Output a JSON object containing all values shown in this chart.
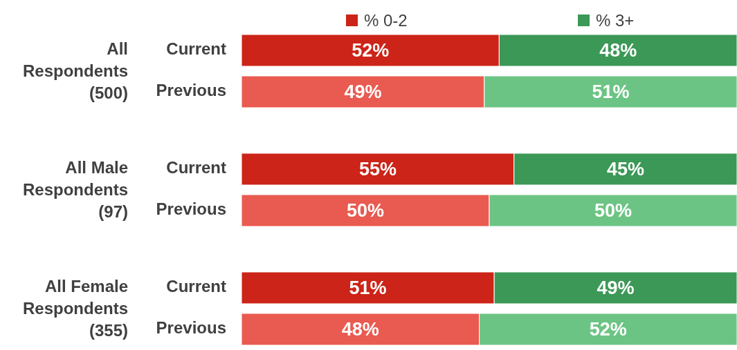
{
  "chart_data": {
    "type": "bar",
    "orientation": "horizontal",
    "stacked": true,
    "categories": [
      "Current",
      "Previous",
      "Current",
      "Previous",
      "Current",
      "Previous"
    ],
    "series": [
      {
        "name": "% 0-2",
        "color": "#cc2418",
        "colors": [
          "#cc2418",
          "#e95a50",
          "#cc2418",
          "#e95a50",
          "#cc2418",
          "#e95a50"
        ],
        "values": [
          52,
          49,
          55,
          50,
          51,
          48
        ],
        "value_labels": [
          "52%",
          "49%",
          "55%",
          "50%",
          "51%",
          "48%"
        ]
      },
      {
        "name": "% 3+",
        "color": "#3c9856",
        "colors": [
          "#3c9856",
          "#6cc484",
          "#3c9856",
          "#6cc484",
          "#3c9856",
          "#6cc484"
        ],
        "values": [
          48,
          51,
          45,
          50,
          49,
          52
        ],
        "value_labels": [
          "48%",
          "51%",
          "45%",
          "50%",
          "49%",
          "52%"
        ]
      }
    ],
    "tick_labels": "y",
    "legend": "top",
    "annotations": [
      "All Respondents (500)",
      "All Male Respondents (97)",
      "All Female Respondents (355)"
    ]
  }
}
